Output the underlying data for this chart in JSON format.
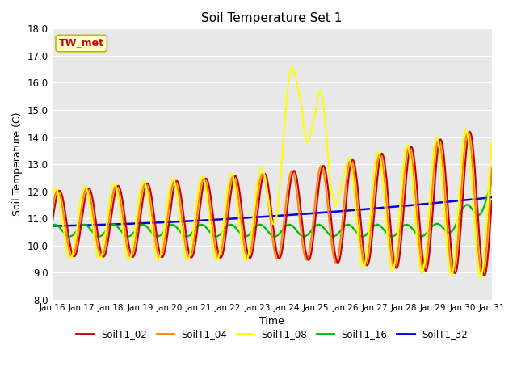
{
  "title": "Soil Temperature Set 1",
  "xlabel": "Time",
  "ylabel": "Soil Temperature (C)",
  "annotation": "TW_met",
  "ylim": [
    8.0,
    18.0
  ],
  "yticks": [
    8.0,
    9.0,
    10.0,
    11.0,
    12.0,
    13.0,
    14.0,
    15.0,
    16.0,
    17.0,
    18.0
  ],
  "xtick_labels": [
    "Jan 16",
    "Jan 17",
    "Jan 18",
    "Jan 19",
    "Jan 20",
    "Jan 21",
    "Jan 22",
    "Jan 23",
    "Jan 24",
    "Jan 25",
    "Jan 26",
    "Jan 27",
    "Jan 28",
    "Jan 29",
    "Jan 30",
    "Jan 31"
  ],
  "legend_labels": [
    "SoilT1_02",
    "SoilT1_04",
    "SoilT1_08",
    "SoilT1_16",
    "SoilT1_32"
  ],
  "colors": {
    "SoilT1_02": "#cc0000",
    "SoilT1_04": "#ff8800",
    "SoilT1_08": "#ffff00",
    "SoilT1_16": "#00bb00",
    "SoilT1_32": "#0000dd"
  },
  "background_color": "#e8e8e8",
  "annotation_bg": "#ffffcc",
  "annotation_border": "#bbbb00",
  "annotation_text_color": "#cc0000",
  "figsize": [
    6.4,
    4.8
  ],
  "dpi": 100
}
